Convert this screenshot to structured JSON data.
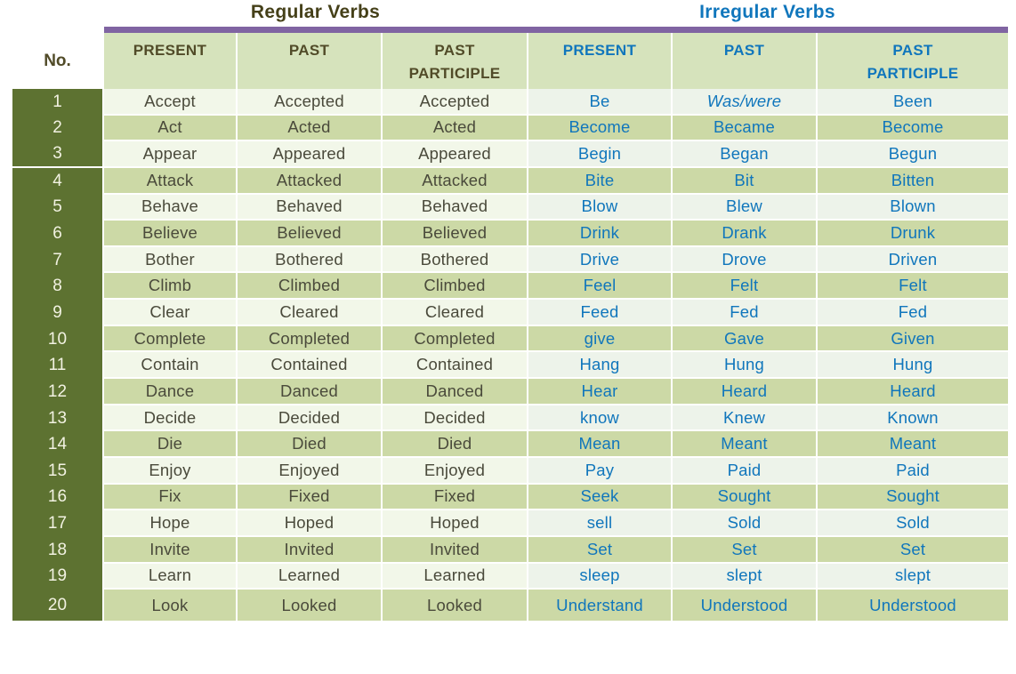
{
  "titles": {
    "regular": "Regular Verbs",
    "irregular": "Irregular Verbs"
  },
  "no_header": "No.",
  "columns": {
    "regular": [
      "PRESENT",
      "PAST",
      "PAST PARTICIPLE"
    ],
    "irregular": [
      "PRESENT",
      "PAST",
      "PAST PARTICIPLE"
    ]
  },
  "rows": [
    {
      "no": "1",
      "regular": [
        "Accept",
        "Accepted",
        "Accepted"
      ],
      "irregular": [
        "Be",
        "Was/were",
        "Been"
      ]
    },
    {
      "no": "2",
      "regular": [
        "Act",
        "Acted",
        "Acted"
      ],
      "irregular": [
        "Become",
        "Became",
        "Become"
      ]
    },
    {
      "no": "3",
      "regular": [
        "Appear",
        "Appeared",
        "Appeared"
      ],
      "irregular": [
        "Begin",
        "Began",
        "Begun"
      ]
    },
    {
      "no": "4",
      "regular": [
        "Attack",
        "Attacked",
        "Attacked"
      ],
      "irregular": [
        "Bite",
        "Bit",
        "Bitten"
      ]
    },
    {
      "no": "5",
      "regular": [
        "Behave",
        "Behaved",
        "Behaved"
      ],
      "irregular": [
        "Blow",
        "Blew",
        "Blown"
      ]
    },
    {
      "no": "6",
      "regular": [
        "Believe",
        "Believed",
        "Believed"
      ],
      "irregular": [
        "Drink",
        "Drank",
        "Drunk"
      ]
    },
    {
      "no": "7",
      "regular": [
        "Bother",
        "Bothered",
        "Bothered"
      ],
      "irregular": [
        "Drive",
        "Drove",
        "Driven"
      ]
    },
    {
      "no": "8",
      "regular": [
        "Climb",
        "Climbed",
        "Climbed"
      ],
      "irregular": [
        "Feel",
        "Felt",
        "Felt"
      ]
    },
    {
      "no": "9",
      "regular": [
        "Clear",
        "Cleared",
        "Cleared"
      ],
      "irregular": [
        "Feed",
        "Fed",
        "Fed"
      ]
    },
    {
      "no": "10",
      "regular": [
        "Complete",
        "Completed",
        "Completed"
      ],
      "irregular": [
        "give",
        "Gave",
        "Given"
      ]
    },
    {
      "no": "11",
      "regular": [
        "Contain",
        "Contained",
        "Contained"
      ],
      "irregular": [
        "Hang",
        "Hung",
        "Hung"
      ]
    },
    {
      "no": "12",
      "regular": [
        "Dance",
        "Danced",
        "Danced"
      ],
      "irregular": [
        "Hear",
        "Heard",
        "Heard"
      ]
    },
    {
      "no": "13",
      "regular": [
        "Decide",
        "Decided",
        "Decided"
      ],
      "irregular": [
        "know",
        "Knew",
        "Known"
      ]
    },
    {
      "no": "14",
      "regular": [
        "Die",
        "Died",
        "Died"
      ],
      "irregular": [
        "Mean",
        "Meant",
        "Meant"
      ]
    },
    {
      "no": "15",
      "regular": [
        "Enjoy",
        "Enjoyed",
        "Enjoyed"
      ],
      "irregular": [
        "Pay",
        "Paid",
        "Paid"
      ]
    },
    {
      "no": "16",
      "regular": [
        "Fix",
        "Fixed",
        "Fixed"
      ],
      "irregular": [
        "Seek",
        "Sought",
        "Sought"
      ]
    },
    {
      "no": "17",
      "regular": [
        "Hope",
        "Hoped",
        "Hoped"
      ],
      "irregular": [
        "sell",
        "Sold",
        "Sold"
      ]
    },
    {
      "no": "18",
      "regular": [
        "Invite",
        "Invited",
        "Invited"
      ],
      "irregular": [
        "Set",
        "Set",
        "Set"
      ]
    },
    {
      "no": "19",
      "regular": [
        "Learn",
        "Learned",
        "Learned"
      ],
      "irregular": [
        "sleep",
        "slept",
        "slept"
      ]
    },
    {
      "no": "20",
      "regular": [
        "Look",
        "Looked",
        "Looked"
      ],
      "irregular": [
        "Understand",
        "Understood",
        "Understood"
      ]
    }
  ],
  "styles": {
    "italic_cells": [
      "0-i-1"
    ]
  },
  "colors": {
    "purple": "#8064a2",
    "header_bg": "#d6e3bc",
    "row_light": "#f2f7e9",
    "row_light_irr": "#edf3ea",
    "row_medium": "#ccd9a6",
    "no_col_bg": "#5d7231",
    "no_text": "#f2f2e2",
    "regular_text": "#4a4a3b",
    "irregular_text": "#1076bc",
    "regular_header_text": "#514b28",
    "title_regular": "#454019"
  }
}
